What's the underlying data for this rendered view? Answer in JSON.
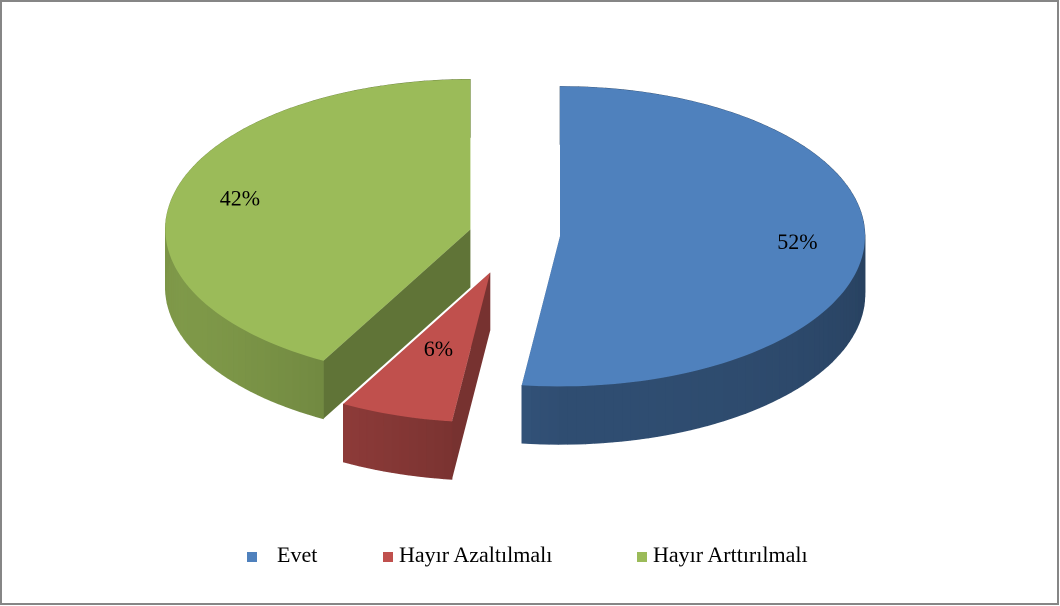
{
  "chart_data": {
    "type": "pie3d",
    "categories": [
      "Evet",
      "Hayır Azaltılmalı",
      "Hayır Arttırılmalı"
    ],
    "values": [
      52,
      6,
      42
    ],
    "value_labels": [
      "52%",
      "6%",
      "42%"
    ],
    "colors": [
      "#4f81bd",
      "#c0504d",
      "#9bbb59"
    ],
    "legend": "bottom"
  }
}
